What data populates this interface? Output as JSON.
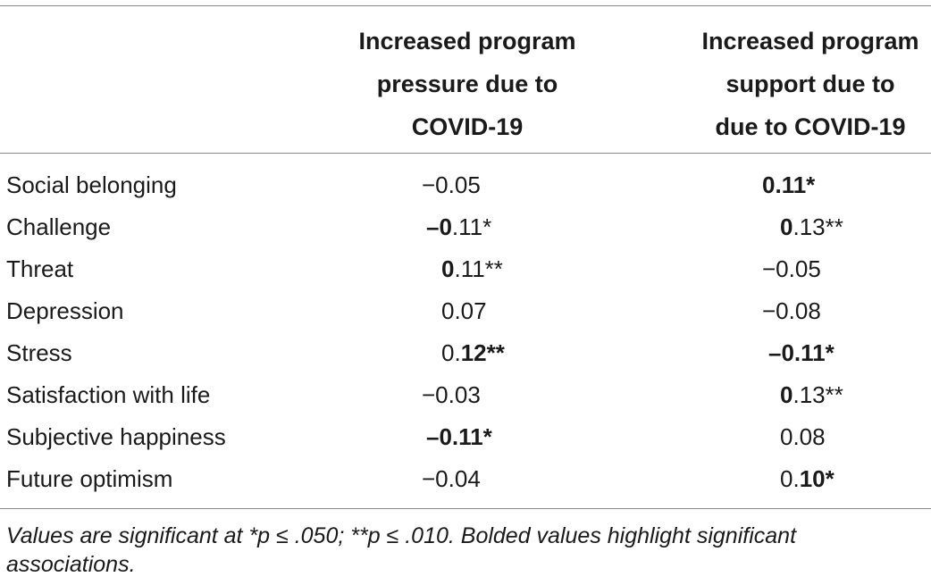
{
  "table": {
    "headers": {
      "col1": [
        "Increased program",
        "pressure due to",
        "COVID-19"
      ],
      "col2": [
        "Increased program",
        "support due to",
        "due to COVID-19"
      ]
    },
    "rows": [
      {
        "label": "Social belonging",
        "v1": {
          "text": "−0.05",
          "int": "",
          "frac": "",
          "bold": false
        },
        "v2": {
          "text": "",
          "int": "0",
          "frac": ".11*",
          "bold": true
        }
      },
      {
        "label": "Challenge",
        "v1": {
          "text": "",
          "int": "–0",
          "frac": ".11*",
          "bold": true
        },
        "v2": {
          "text": "",
          "int": "0",
          "frac": ".13**",
          "bold": true
        }
      },
      {
        "label": "Threat",
        "v1": {
          "text": "",
          "int": "0",
          "frac": ".11**",
          "bold": true
        },
        "v2": {
          "text": "−0.05",
          "int": "",
          "frac": "",
          "bold": false
        }
      },
      {
        "label": "Depression",
        "v1": {
          "text": "0.07",
          "int": "",
          "frac": "",
          "bold": false
        },
        "v2": {
          "text": "−0.08",
          "int": "",
          "frac": "",
          "bold": false
        }
      },
      {
        "label": "Stress",
        "v1": {
          "text": "",
          "int": "0.",
          "frac": "12**",
          "bold": true
        },
        "v2": {
          "text": "",
          "int": "–0",
          "frac": ".11*",
          "bold": true
        }
      },
      {
        "label": "Satisfaction with life",
        "v1": {
          "text": "−0.03",
          "int": "",
          "frac": "",
          "bold": false
        },
        "v2": {
          "text": "",
          "int": "0",
          "frac": ".13**",
          "bold": true
        }
      },
      {
        "label": "Subjective happiness",
        "v1": {
          "text": "",
          "int": "–0",
          "frac": ".11*",
          "bold": true
        },
        "v2": {
          "text": "0.08",
          "int": "",
          "frac": "",
          "bold": false
        }
      },
      {
        "label": "Future optimism",
        "v1": {
          "text": "−0.04",
          "int": "",
          "frac": "",
          "bold": false
        },
        "v2": {
          "text": "",
          "int": "0.",
          "frac": "10*",
          "bold": true
        }
      }
    ]
  },
  "footnote": "Values are significant at *p ≤ .050; **p ≤ .010. Bolded values highlight significant associations."
}
